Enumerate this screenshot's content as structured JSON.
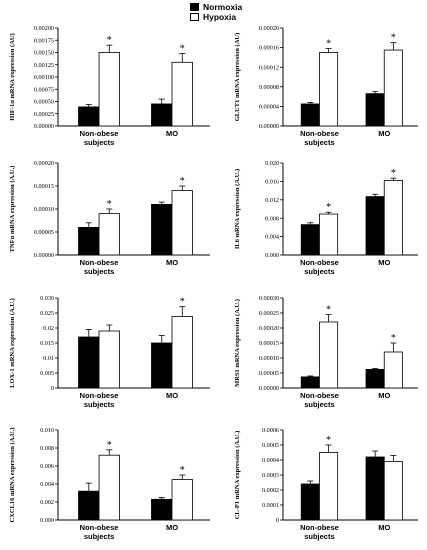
{
  "legend": {
    "normoxia": "Normoxia",
    "hypoxia": "Hypoxia"
  },
  "chart_data": [
    {
      "type": "bar",
      "ylabel": "HIF-1α mRNA expression (AU)",
      "categories": [
        "Non-obese subjects",
        "MO"
      ],
      "ylim": [
        0,
        0.002
      ],
      "yticks": [
        "0.00000",
        "0.00025",
        "0.00050",
        "0.00075",
        "0.00100",
        "0.00125",
        "0.00150",
        "0.00175",
        "0.00200"
      ],
      "series": [
        {
          "name": "Normoxia",
          "values": [
            0.00039,
            0.00045
          ],
          "errors": [
            5e-05,
            0.0001
          ]
        },
        {
          "name": "Hypoxia",
          "values": [
            0.0015,
            0.0013
          ],
          "errors": [
            0.00015,
            0.00018
          ]
        }
      ],
      "stars": [
        false,
        true,
        false,
        true
      ]
    },
    {
      "type": "bar",
      "ylabel": "GLUT1 mRNA expression (AU)",
      "categories": [
        "Non-obese subjects",
        "MO"
      ],
      "ylim": [
        0,
        0.0002
      ],
      "yticks": [
        "0.00000",
        "0.00004",
        "0.00008",
        "0.00012",
        "0.00016",
        "0.00020"
      ],
      "series": [
        {
          "name": "Normoxia",
          "values": [
            4.5e-05,
            6.6e-05
          ],
          "errors": [
            3e-06,
            4e-06
          ]
        },
        {
          "name": "Hypoxia",
          "values": [
            0.00015,
            0.000155
          ],
          "errors": [
            8e-06,
            1.5e-05
          ]
        }
      ],
      "stars": [
        false,
        true,
        false,
        true
      ]
    },
    {
      "type": "bar",
      "ylabel": "TNFα mRNA expression (A.U.)",
      "categories": [
        "Non-obese subjects",
        "MO"
      ],
      "ylim": [
        0,
        0.0002
      ],
      "yticks": [
        "0.00000",
        "0.00005",
        "0.00010",
        "0.00015",
        "0.00020"
      ],
      "series": [
        {
          "name": "Normoxia",
          "values": [
            6e-05,
            0.00011
          ],
          "errors": [
            1e-05,
            5e-06
          ]
        },
        {
          "name": "Hypoxia",
          "values": [
            9e-05,
            0.00014
          ],
          "errors": [
            1e-05,
            1e-05
          ]
        }
      ],
      "stars": [
        false,
        true,
        false,
        true
      ]
    },
    {
      "type": "bar",
      "ylabel": "IL6 mRNA expression (A.U.)",
      "categories": [
        "Non-obese subjects",
        "MO"
      ],
      "ylim": [
        0,
        0.02
      ],
      "yticks": [
        "0.000",
        "0.004",
        "0.008",
        "0.012",
        "0.016",
        "0.020"
      ],
      "series": [
        {
          "name": "Normoxia",
          "values": [
            0.0066,
            0.0127
          ],
          "errors": [
            0.0004,
            0.0005
          ]
        },
        {
          "name": "Hypoxia",
          "values": [
            0.0089,
            0.0162
          ],
          "errors": [
            0.0004,
            0.0005
          ]
        }
      ],
      "stars": [
        false,
        true,
        false,
        true
      ]
    },
    {
      "type": "bar",
      "ylabel": "LOX-1 mRNA expression (A.U.)",
      "categories": [
        "Non-obese subjects",
        "MO"
      ],
      "ylim": [
        0,
        0.03
      ],
      "yticks": [
        "0",
        "0.005",
        "0.01",
        "0.015",
        "0.02",
        "0.025",
        "0.030"
      ],
      "series": [
        {
          "name": "Normoxia",
          "values": [
            0.017,
            0.015
          ],
          "errors": [
            0.0025,
            0.0025
          ]
        },
        {
          "name": "Hypoxia",
          "values": [
            0.019,
            0.0238
          ],
          "errors": [
            0.002,
            0.0033
          ]
        }
      ],
      "stars": [
        false,
        false,
        false,
        true
      ]
    },
    {
      "type": "bar",
      "ylabel": "MRS1 mRNA expression (A.U.)",
      "categories": [
        "Non-obese subjects",
        "MO"
      ],
      "ylim": [
        0,
        0.0003
      ],
      "yticks": [
        "0.00000",
        "0.00005",
        "0.00010",
        "0.00015",
        "0.00020",
        "0.00025",
        "0.00030"
      ],
      "series": [
        {
          "name": "Normoxia",
          "values": [
            3.7e-05,
            6.2e-05
          ],
          "errors": [
            3e-06,
            3e-06
          ]
        },
        {
          "name": "Hypoxia",
          "values": [
            0.00022,
            0.00012
          ],
          "errors": [
            2.5e-05,
            3e-05
          ]
        }
      ],
      "stars": [
        false,
        true,
        false,
        true
      ]
    },
    {
      "type": "bar",
      "ylabel": "CXCL16 mRNA expression (A.U.)",
      "categories": [
        "Non-obese subjects",
        "MO"
      ],
      "ylim": [
        0,
        0.01
      ],
      "yticks": [
        "0.000",
        "0.002",
        "0.004",
        "0.006",
        "0.008",
        "0.010"
      ],
      "series": [
        {
          "name": "Normoxia",
          "values": [
            0.0032,
            0.0023
          ],
          "errors": [
            0.0009,
            0.0002
          ]
        },
        {
          "name": "Hypoxia",
          "values": [
            0.0072,
            0.0045
          ],
          "errors": [
            0.0006,
            0.0005
          ]
        }
      ],
      "stars": [
        false,
        true,
        false,
        true
      ]
    },
    {
      "type": "bar",
      "ylabel": "CL-P1 mRNA expression (A.U.)",
      "categories": [
        "Non-obese subjects",
        "MO"
      ],
      "ylim": [
        0,
        0.0006
      ],
      "yticks": [
        "0",
        "0.0001",
        "0.0002",
        "0.0003",
        "0.0004",
        "0.0005",
        "0.0006"
      ],
      "series": [
        {
          "name": "Normoxia",
          "values": [
            0.00024,
            0.00042
          ],
          "errors": [
            2e-05,
            4e-05
          ]
        },
        {
          "name": "Hypoxia",
          "values": [
            0.00045,
            0.00039
          ],
          "errors": [
            5e-05,
            4e-05
          ]
        }
      ],
      "stars": [
        false,
        true,
        false,
        false
      ]
    }
  ]
}
